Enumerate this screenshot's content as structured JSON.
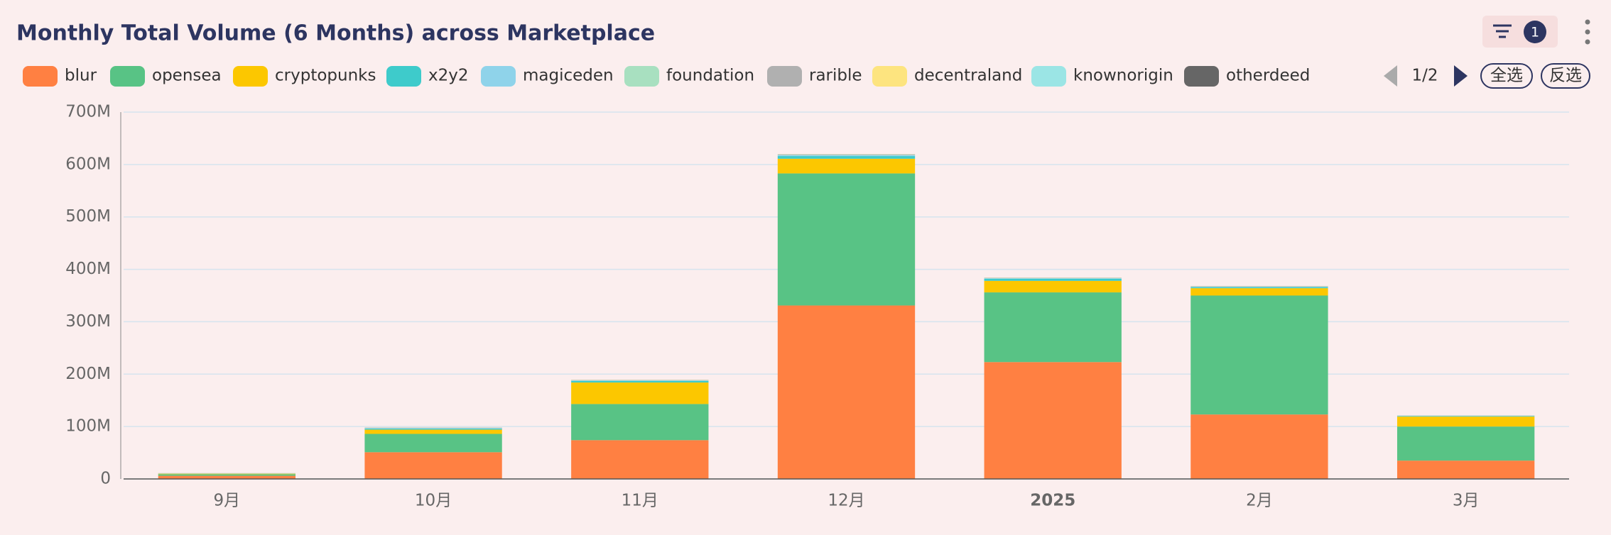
{
  "chart_data": {
    "type": "bar",
    "stacked": true,
    "title": "Monthly Total Volume (6 Months) across Marketplace",
    "filter_count": "1",
    "legend_page": "1/2",
    "select_all": "全选",
    "invert_selection": "反选",
    "categories": [
      "9月",
      "10月",
      "11月",
      "12月",
      "2025",
      "2月",
      "3月"
    ],
    "series": [
      {
        "name": "blur",
        "color": "#ff8042",
        "values": [
          6,
          51,
          74,
          331,
          223,
          123,
          35
        ]
      },
      {
        "name": "opensea",
        "color": "#58c385",
        "values": [
          3,
          35,
          69,
          252,
          133,
          227,
          65
        ]
      },
      {
        "name": "cryptopunks",
        "color": "#fcc700",
        "values": [
          1,
          8,
          41,
          28,
          22,
          14,
          19
        ]
      },
      {
        "name": "x2y2",
        "color": "#3ecbcb",
        "values": [
          0.3,
          2,
          3,
          5,
          4,
          2,
          1
        ]
      },
      {
        "name": "magiceden",
        "color": "#8fd3ea",
        "values": [
          0.2,
          1,
          1,
          2,
          1,
          1,
          0.5
        ]
      },
      {
        "name": "foundation",
        "color": "#a8e0c0",
        "values": [
          0.1,
          0.3,
          0.3,
          0.5,
          0.3,
          0.3,
          0.2
        ]
      },
      {
        "name": "rarible",
        "color": "#b0b0b0",
        "values": [
          0.1,
          0.2,
          0.2,
          0.3,
          0.2,
          0.2,
          0.1
        ]
      },
      {
        "name": "decentraland",
        "color": "#fde47f",
        "values": [
          0.1,
          0.3,
          0.3,
          0.4,
          0.3,
          0.3,
          0.2
        ]
      },
      {
        "name": "knownorigin",
        "color": "#9be5e5",
        "values": [
          0.1,
          0.1,
          0.1,
          0.2,
          0.1,
          0.1,
          0.1
        ]
      },
      {
        "name": "otherdeed",
        "color": "#666666",
        "values": [
          0.1,
          0.2,
          0.2,
          0.3,
          0.2,
          0.2,
          0.1
        ]
      }
    ],
    "ylim": [
      0,
      700
    ],
    "yticks": [
      0,
      {
        "value": 100,
        "label": "100M"
      },
      {
        "value": 200,
        "label": "200M"
      },
      {
        "value": 300,
        "label": "300M"
      },
      {
        "value": 400,
        "label": "400M"
      },
      {
        "value": 500,
        "label": "500M"
      },
      {
        "value": 600,
        "label": "600M"
      },
      {
        "value": 700,
        "label": "700M"
      }
    ],
    "grid": true
  }
}
